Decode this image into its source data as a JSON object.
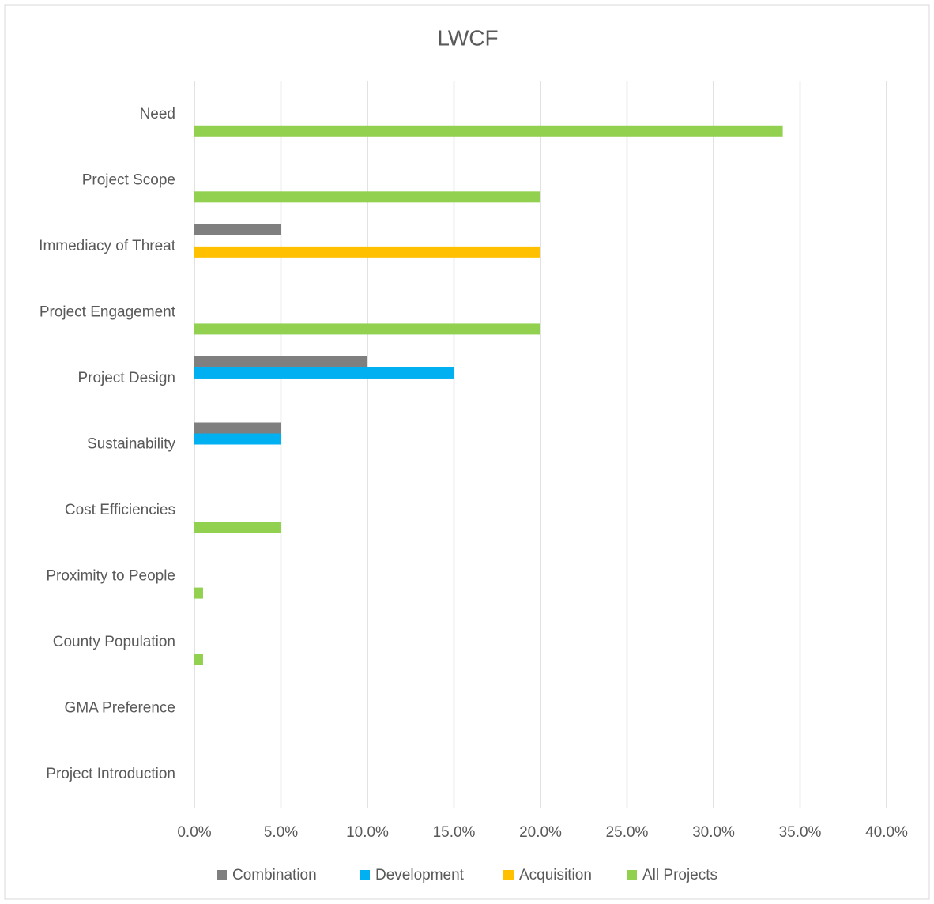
{
  "chart_data": {
    "type": "bar",
    "orientation": "horizontal",
    "title": "LWCF",
    "categories": [
      "Need",
      "Project Scope",
      "Immediacy of Threat",
      "Project Engagement",
      "Project Design",
      "Sustainability",
      "Cost Efficiencies",
      "Proximity to People",
      "County Population",
      "GMA Preference",
      "Project Introduction"
    ],
    "series": [
      {
        "name": "Combination",
        "color": "#7f7f7f",
        "values": [
          null,
          null,
          5,
          null,
          10,
          5,
          null,
          null,
          null,
          null,
          null
        ]
      },
      {
        "name": "Development",
        "color": "#00b0f0",
        "values": [
          null,
          null,
          null,
          null,
          15,
          5,
          null,
          null,
          null,
          null,
          null
        ]
      },
      {
        "name": "Acquisition",
        "color": "#ffc000",
        "values": [
          null,
          null,
          20,
          null,
          null,
          null,
          null,
          null,
          null,
          null,
          null
        ]
      },
      {
        "name": "All Projects",
        "color": "#92d050",
        "values": [
          34,
          20,
          null,
          20,
          null,
          null,
          5,
          0.5,
          0.5,
          null,
          null
        ]
      }
    ],
    "xlim": [
      0,
      40
    ],
    "xticks": [
      {
        "value": 0,
        "label": "0.0%"
      },
      {
        "value": 5,
        "label": "5.0%"
      },
      {
        "value": 10,
        "label": "10.0%"
      },
      {
        "value": 15,
        "label": "15.0%"
      },
      {
        "value": 20,
        "label": "20.0%"
      },
      {
        "value": 25,
        "label": "25.0%"
      },
      {
        "value": 30,
        "label": "30.0%"
      },
      {
        "value": 35,
        "label": "35.0%"
      },
      {
        "value": 40,
        "label": "40.0%"
      }
    ],
    "grid": true,
    "legend": "bottom"
  }
}
